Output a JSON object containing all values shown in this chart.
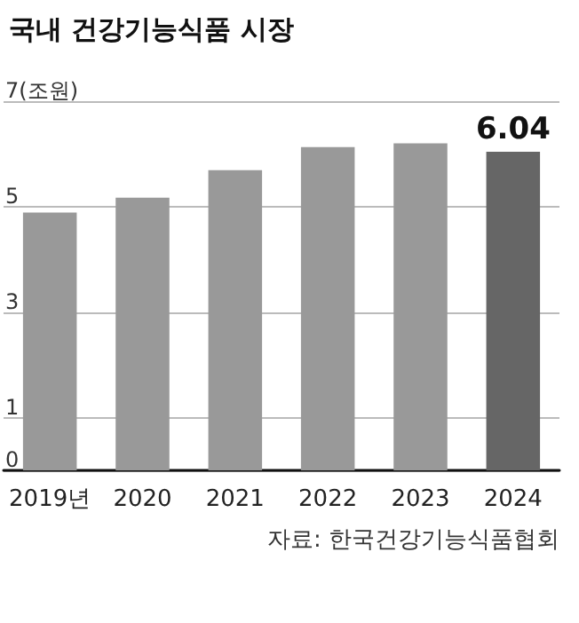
{
  "chart_data": {
    "type": "bar",
    "title": "국내 건강기능식품 시장",
    "categories": [
      "2019년",
      "2020",
      "2021",
      "2022",
      "2023",
      "2024"
    ],
    "values": [
      4.89,
      5.17,
      5.69,
      6.13,
      6.2,
      6.04
    ],
    "colors": [
      "#999999",
      "#999999",
      "#999999",
      "#999999",
      "#999999",
      "#666666"
    ],
    "value_labels": [
      null,
      null,
      null,
      null,
      null,
      "6.04"
    ],
    "ylim": [
      0,
      7
    ],
    "yticks": [
      0,
      1,
      3,
      5,
      {
        "value": 7,
        "label": "7(조원)"
      }
    ],
    "grid": "y",
    "annotations": [
      "자료: 한국건강기능식품협회"
    ]
  }
}
